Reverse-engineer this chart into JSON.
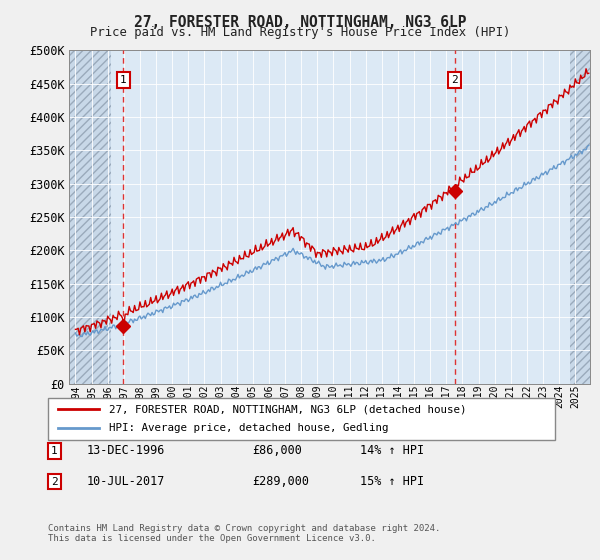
{
  "title": "27, FORESTER ROAD, NOTTINGHAM, NG3 6LP",
  "subtitle": "Price paid vs. HM Land Registry's House Price Index (HPI)",
  "legend_line1": "27, FORESTER ROAD, NOTTINGHAM, NG3 6LP (detached house)",
  "legend_line2": "HPI: Average price, detached house, Gedling",
  "note": "Contains HM Land Registry data © Crown copyright and database right 2024.\nThis data is licensed under the Open Government Licence v3.0.",
  "ylim": [
    0,
    500000
  ],
  "yticks": [
    0,
    50000,
    100000,
    150000,
    200000,
    250000,
    300000,
    350000,
    400000,
    450000,
    500000
  ],
  "ytick_labels": [
    "£0",
    "£50K",
    "£100K",
    "£150K",
    "£200K",
    "£250K",
    "£300K",
    "£350K",
    "£400K",
    "£450K",
    "£500K"
  ],
  "xlim_start": 1993.6,
  "xlim_end": 2025.9,
  "marker1_date": 1996.96,
  "marker1_value": 86000,
  "marker1_label": "1",
  "marker2_date": 2017.53,
  "marker2_value": 289000,
  "marker2_label": "2",
  "hatch_left_end": 1996.2,
  "hatch_right_start": 2024.7,
  "plot_bg_color": "#dce9f5",
  "fig_bg_color": "#f0f0f0",
  "red_color": "#cc0000",
  "blue_color": "#6699cc",
  "dashed_line_color": "#dd3333",
  "grid_color": "#ffffff",
  "marker_box_color": "#cc0000",
  "hatch_face_color": "#c8d8e8",
  "hatch_edge_color": "#9aaabb"
}
